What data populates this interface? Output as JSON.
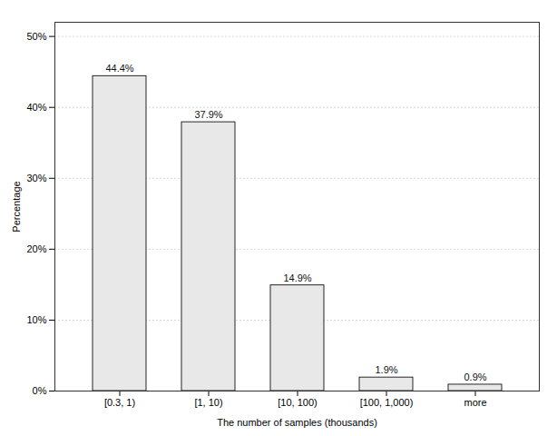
{
  "chart_data": {
    "type": "bar",
    "categories": [
      "[0.3, 1)",
      "[1, 10)",
      "[10, 100)",
      "[100, 1,000)",
      "more"
    ],
    "values": [
      44.4,
      37.9,
      14.9,
      1.9,
      0.9
    ],
    "value_labels": [
      "44.4%",
      "37.9%",
      "14.9%",
      "1.9%",
      "0.9%"
    ],
    "data_labels": true,
    "color": "#e8e8e8",
    "xlabel": "The number of samples (thousands)",
    "ylabel": "Percentage",
    "ylim": [
      0,
      52
    ],
    "yticks": [
      {
        "value": 0,
        "label": "0%"
      },
      {
        "value": 10,
        "label": "10%"
      },
      {
        "value": 20,
        "label": "20%"
      },
      {
        "value": 30,
        "label": "30%"
      },
      {
        "value": 40,
        "label": "40%"
      },
      {
        "value": 50,
        "label": "50%"
      }
    ],
    "grid": true
  }
}
